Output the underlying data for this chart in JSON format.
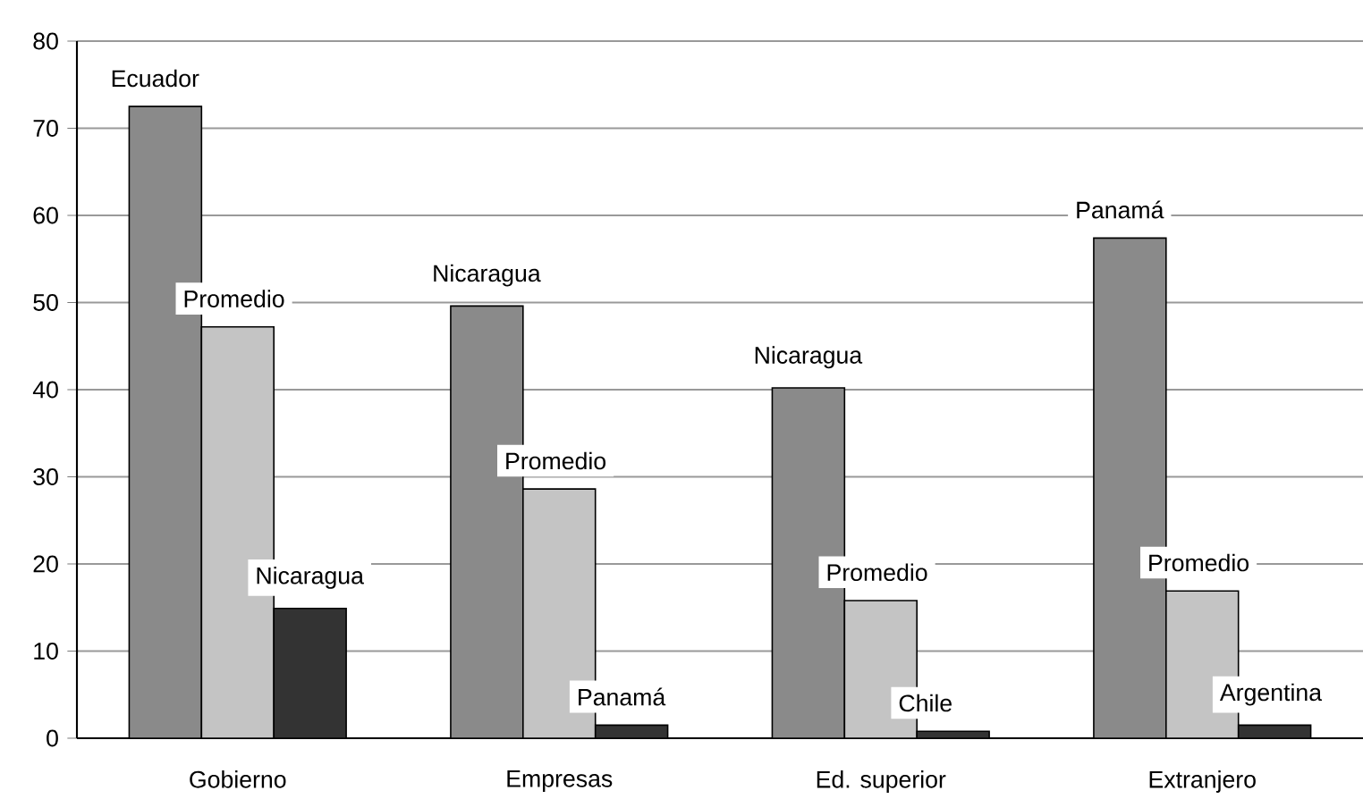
{
  "chart_data": {
    "type": "bar",
    "categories": [
      "Gobierno",
      "Empresas",
      "Ed. superior",
      "Extranjero"
    ],
    "series": [
      {
        "color": "#8a8a8a",
        "values": [
          72.5,
          49.6,
          40.2,
          57.4
        ],
        "value_labels": [
          "Ecuador",
          "Nicaragua",
          "Nicaragua",
          "Panamá"
        ]
      },
      {
        "color": "#c4c4c4",
        "values": [
          47.2,
          28.6,
          15.8,
          16.9
        ],
        "value_labels": [
          "Promedio",
          "Promedio",
          "Promedio",
          "Promedio"
        ]
      },
      {
        "color": "#333333",
        "values": [
          14.9,
          1.5,
          0.8,
          1.5
        ],
        "value_labels": [
          "Nicaragua",
          "Panamá",
          "Chile",
          "Argentina"
        ]
      }
    ],
    "ylim": [
      0,
      80
    ],
    "yticks": [
      0,
      10,
      20,
      30,
      40,
      50,
      60,
      70,
      80
    ],
    "grid": "y"
  }
}
